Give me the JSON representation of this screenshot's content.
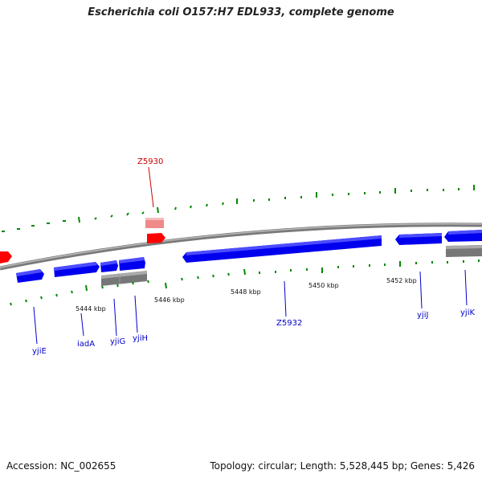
{
  "title": "Escherichia coli O157:H7 EDL933, complete genome",
  "accession": "Accession: NC_002655",
  "summary": "Topology: circular; Length: 5,528,445 bp; Genes: 5,426",
  "colors": {
    "forward_gene": "#0000ee",
    "reverse_gene": "#0000ee",
    "gray_feature": "#777777",
    "red_feature": "#ff0000",
    "pink_feature": "#ee8080",
    "backbone": "#8a8a8a",
    "tick": "#008800",
    "label_gene": "#0000cc",
    "label_red": "#cc0000"
  },
  "scale_labels": [
    "5444 kbp",
    "5446 kbp",
    "5448 kbp",
    "5450 kbp",
    "5452 kbp"
  ],
  "gene_labels": [
    "yjiE",
    "iadA",
    "yjiG",
    "yjiH",
    "Z5932",
    "yjiJ",
    "yjiK"
  ],
  "red_label": "Z5930"
}
